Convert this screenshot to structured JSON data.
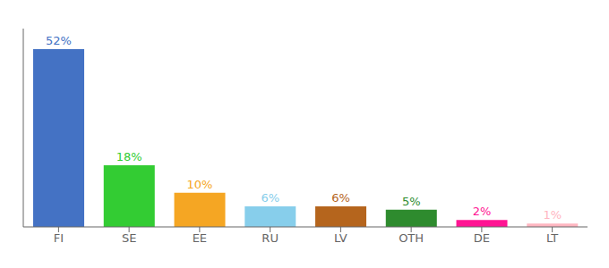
{
  "chart_data": {
    "type": "bar",
    "categories": [
      "FI",
      "SE",
      "EE",
      "RU",
      "LV",
      "OTH",
      "DE",
      "LT"
    ],
    "values": [
      52,
      18,
      10,
      6,
      6,
      5,
      2,
      1
    ],
    "value_labels": [
      "52%",
      "18%",
      "10%",
      "6%",
      "6%",
      "5%",
      "2%",
      "1%"
    ],
    "colors": [
      "#4472c4",
      "#33cc33",
      "#f5a623",
      "#87ceeb",
      "#b5651d",
      "#2e8b2e",
      "#ff1493",
      "#ffb6c1"
    ],
    "ylim": [
      0,
      58
    ],
    "data_labels": true,
    "tick_labels": "x",
    "grid": false
  }
}
